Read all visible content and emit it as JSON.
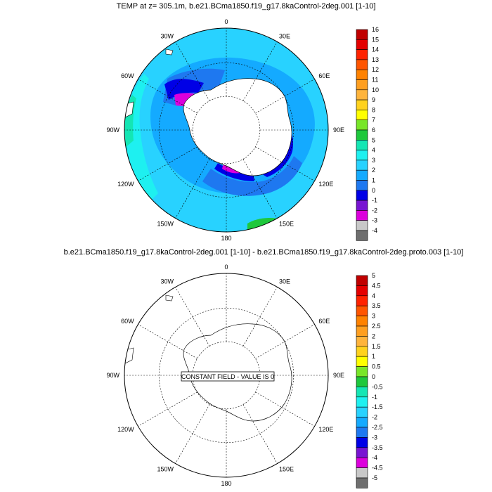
{
  "panels": [
    {
      "title": "TEMP at z= 305.1m, b.e21.BCma1850.f19_g17.8kaControl-2deg.001 [1-10]",
      "longitude_labels": [
        "0",
        "30E",
        "60E",
        "90E",
        "120E",
        "150E",
        "180",
        "150W",
        "120W",
        "90W",
        "60W",
        "30W"
      ],
      "colorbar": {
        "labels": [
          "16",
          "15",
          "14",
          "13",
          "12",
          "11",
          "10",
          "9",
          "8",
          "7",
          "6",
          "5",
          "4",
          "3",
          "2",
          "1",
          "0",
          "-1",
          "-2",
          "-3",
          "-4"
        ],
        "colors": [
          "#c00000",
          "#e40000",
          "#ff2200",
          "#ff5500",
          "#ff8200",
          "#ff9f20",
          "#ffb43c",
          "#ffd21e",
          "#ffff00",
          "#78e628",
          "#1ec83c",
          "#14e6b4",
          "#1ef0f0",
          "#28d2ff",
          "#14aaff",
          "#1e78f0",
          "#0000e6",
          "#7814d2",
          "#dc00dc",
          "#c8c8c8",
          "#6e6e6e"
        ]
      }
    },
    {
      "title": "b.e21.BCma1850.f19_g17.8kaControl-2deg.001 [1-10] - b.e21.BCma1850.f19_g17.8kaControl-2deg.proto.003 [1-10]",
      "longitude_labels": [
        "0",
        "30E",
        "60E",
        "90E",
        "120E",
        "150E",
        "180",
        "150W",
        "120W",
        "90W",
        "60W",
        "30W"
      ],
      "annotation": "CONSTANT FIELD - VALUE IS 0",
      "colorbar": {
        "labels": [
          "5",
          "4.5",
          "4",
          "3.5",
          "3",
          "2.5",
          "2",
          "1.5",
          "1",
          "0.5",
          "0",
          "-0.5",
          "-1",
          "-1.5",
          "-2",
          "-2.5",
          "-3",
          "-3.5",
          "-4",
          "-4.5",
          "-5"
        ],
        "colors": [
          "#c00000",
          "#e40000",
          "#ff2200",
          "#ff5500",
          "#ff8200",
          "#ff9f20",
          "#ffb43c",
          "#ffd21e",
          "#ffff00",
          "#78e628",
          "#1ec83c",
          "#14e6b4",
          "#1ef0f0",
          "#28d2ff",
          "#14aaff",
          "#1e78f0",
          "#0000e6",
          "#7814d2",
          "#dc00dc",
          "#c8c8c8",
          "#6e6e6e"
        ]
      }
    }
  ]
}
